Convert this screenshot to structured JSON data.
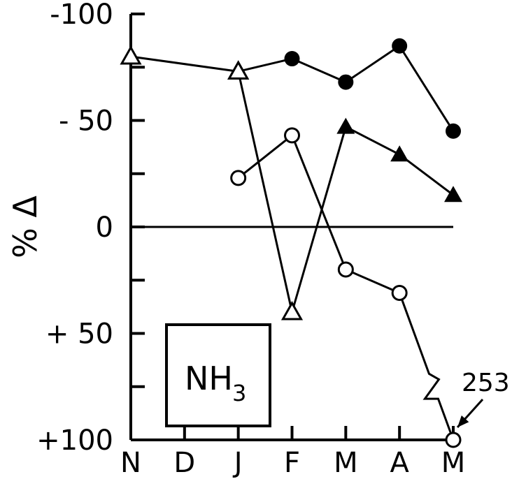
{
  "chart_data": {
    "type": "line",
    "ylabel": "% Δ",
    "categories": [
      "N",
      "D",
      "J",
      "F",
      "M",
      "A",
      "M"
    ],
    "y_axis_inverted": true,
    "ylim": [
      -100,
      100
    ],
    "y_ticks": [
      -100,
      -75,
      -50,
      -25,
      0,
      25,
      50,
      75,
      100
    ],
    "y_tick_labels": [
      {
        "value": -100,
        "label": "-100"
      },
      {
        "value": -50,
        "label": "- 50"
      },
      {
        "value": 0,
        "label": "0"
      },
      {
        "value": 50,
        "label": "+ 50"
      },
      {
        "value": 100,
        "label": "+100"
      }
    ],
    "zero_line": true,
    "box_label": {
      "main": "NH",
      "sub": "3"
    },
    "series": [
      {
        "marker": "filled-circle",
        "points": [
          {
            "cat": 0,
            "y": -80,
            "marker": "open-triangle"
          },
          {
            "cat": 2,
            "y": -73,
            "marker": "open-triangle"
          },
          {
            "cat": 3,
            "y": -79
          },
          {
            "cat": 4,
            "y": -68
          },
          {
            "cat": 5,
            "y": -85
          },
          {
            "cat": 6,
            "y": -45
          }
        ]
      },
      {
        "marker": "filled-triangle",
        "points": [
          {
            "cat": 2,
            "y": -73,
            "marker": "open-triangle"
          },
          {
            "cat": 3,
            "y": 40,
            "marker": "open-triangle"
          },
          {
            "cat": 4,
            "y": -47
          },
          {
            "cat": 5,
            "y": -34
          },
          {
            "cat": 6,
            "y": -15
          }
        ]
      },
      {
        "marker": "open-circle",
        "points": [
          {
            "cat": 2,
            "y": -23
          },
          {
            "cat": 3,
            "y": -43
          },
          {
            "cat": 4,
            "y": 20
          },
          {
            "cat": 5,
            "y": 31
          },
          {
            "cat": 6,
            "y": 100
          }
        ],
        "break_before_last": true
      }
    ],
    "annotations": [
      {
        "text": "253",
        "target_cat": 6,
        "target_y": 100
      }
    ]
  }
}
